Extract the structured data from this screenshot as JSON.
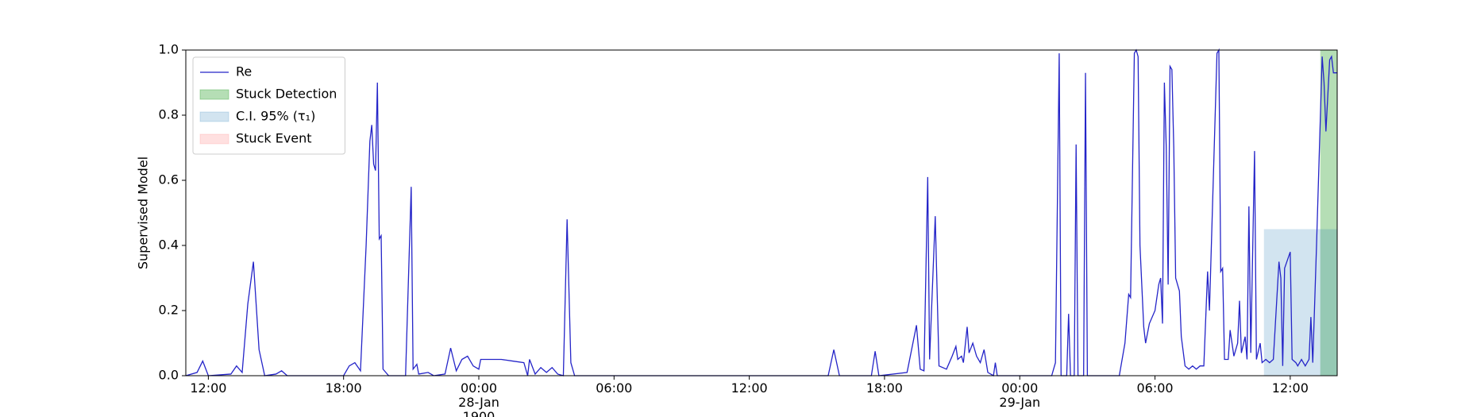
{
  "chart_data": {
    "type": "line",
    "ylabel": "Supervised Model",
    "xlim": [
      "1900-01-27T11:00",
      "1900-01-29T14:05"
    ],
    "ylim": [
      0,
      1
    ],
    "xticks": [
      {
        "value": "1900-01-27T12:00",
        "label": "12:00"
      },
      {
        "value": "1900-01-27T18:00",
        "label": "18:00"
      },
      {
        "value": "1900-01-28T00:00",
        "label": "00:00\n28-Jan\n1900"
      },
      {
        "value": "1900-01-28T06:00",
        "label": "06:00"
      },
      {
        "value": "1900-01-28T12:00",
        "label": "12:00"
      },
      {
        "value": "1900-01-28T18:00",
        "label": "18:00"
      },
      {
        "value": "1900-01-29T00:00",
        "label": "00:00\n29-Jan"
      },
      {
        "value": "1900-01-29T06:00",
        "label": "06:00"
      },
      {
        "value": "1900-01-29T12:00",
        "label": "12:00"
      }
    ],
    "yticks": [
      {
        "value": 0,
        "label": "0.0"
      },
      {
        "value": 0.2,
        "label": "0.2"
      },
      {
        "value": 0.4,
        "label": "0.4"
      },
      {
        "value": 0.6,
        "label": "0.6"
      },
      {
        "value": 0.8,
        "label": "0.8"
      },
      {
        "value": 1,
        "label": "1.0"
      }
    ],
    "legend": "upper left",
    "spans": [
      {
        "name": "Stuck Detection",
        "color": "#2ca02c",
        "alpha": 0.35,
        "start": "1900-01-29T13:20",
        "end": "1900-01-29T14:05",
        "ymax": 1
      },
      {
        "name": "C.I. 95% (τ₁)",
        "color": "#1f77b4",
        "alpha": 0.2,
        "start": "1900-01-29T10:50",
        "end": "1900-01-29T14:05",
        "ymax": 0.45
      },
      {
        "name": "Stuck Event",
        "color": "#ff9999",
        "alpha": 0.3
      }
    ],
    "series": [
      {
        "name": "Re",
        "color": "#2424c8",
        "x": [
          "1900-01-27T11:00",
          "1900-01-27T11:30",
          "1900-01-27T11:45",
          "1900-01-27T12:00",
          "1900-01-27T13:00",
          "1900-01-27T13:15",
          "1900-01-27T13:30",
          "1900-01-27T13:45",
          "1900-01-27T14:00",
          "1900-01-27T14:15",
          "1900-01-27T14:30",
          "1900-01-27T15:00",
          "1900-01-27T15:15",
          "1900-01-27T15:30",
          "1900-01-27T18:00",
          "1900-01-27T18:15",
          "1900-01-27T18:30",
          "1900-01-27T18:45",
          "1900-01-27T19:00",
          "1900-01-27T19:10",
          "1900-01-27T19:15",
          "1900-01-27T19:20",
          "1900-01-27T19:25",
          "1900-01-27T19:30",
          "1900-01-27T19:35",
          "1900-01-27T19:40",
          "1900-01-27T19:45",
          "1900-01-27T20:00",
          "1900-01-27T20:45",
          "1900-01-27T21:00",
          "1900-01-27T21:05",
          "1900-01-27T21:15",
          "1900-01-27T21:20",
          "1900-01-27T21:45",
          "1900-01-27T22:00",
          "1900-01-27T22:30",
          "1900-01-27T22:45",
          "1900-01-27T23:00",
          "1900-01-27T23:15",
          "1900-01-27T23:30",
          "1900-01-27T23:45",
          "1900-01-28T00:00",
          "1900-01-28T00:05",
          "1900-01-28T01:00",
          "1900-01-28T01:30",
          "1900-01-28T02:00",
          "1900-01-28T02:10",
          "1900-01-28T02:15",
          "1900-01-28T02:30",
          "1900-01-28T02:45",
          "1900-01-28T03:00",
          "1900-01-28T03:15",
          "1900-01-28T03:30",
          "1900-01-28T03:45",
          "1900-01-28T03:55",
          "1900-01-28T04:05",
          "1900-01-28T04:15",
          "1900-01-28T15:30",
          "1900-01-28T15:45",
          "1900-01-28T16:00",
          "1900-01-28T17:25",
          "1900-01-28T17:35",
          "1900-01-28T17:45",
          "1900-01-28T19:00",
          "1900-01-28T19:25",
          "1900-01-28T19:35",
          "1900-01-28T19:45",
          "1900-01-28T19:55",
          "1900-01-28T20:00",
          "1900-01-28T20:15",
          "1900-01-28T20:25",
          "1900-01-28T20:45",
          "1900-01-28T21:00",
          "1900-01-28T21:10",
          "1900-01-28T21:15",
          "1900-01-28T21:25",
          "1900-01-28T21:30",
          "1900-01-28T21:40",
          "1900-01-28T21:45",
          "1900-01-28T21:55",
          "1900-01-28T22:05",
          "1900-01-28T22:15",
          "1900-01-28T22:25",
          "1900-01-28T22:35",
          "1900-01-28T22:50",
          "1900-01-28T22:55",
          "1900-01-28T23:00",
          "1900-01-29T01:25",
          "1900-01-29T01:35",
          "1900-01-29T01:45",
          "1900-01-29T01:50",
          "1900-01-29T02:05",
          "1900-01-29T02:10",
          "1900-01-29T02:15",
          "1900-01-29T02:25",
          "1900-01-29T02:30",
          "1900-01-29T02:35",
          "1900-01-29T02:50",
          "1900-01-29T02:55",
          "1900-01-29T03:00",
          "1900-01-29T04:25",
          "1900-01-29T04:40",
          "1900-01-29T04:50",
          "1900-01-29T04:55",
          "1900-01-29T05:05",
          "1900-01-29T05:10",
          "1900-01-29T05:15",
          "1900-01-29T05:20",
          "1900-01-29T05:30",
          "1900-01-29T05:35",
          "1900-01-29T05:45",
          "1900-01-29T06:00",
          "1900-01-29T06:10",
          "1900-01-29T06:15",
          "1900-01-29T06:20",
          "1900-01-29T06:25",
          "1900-01-29T06:30",
          "1900-01-29T06:35",
          "1900-01-29T06:40",
          "1900-01-29T06:45",
          "1900-01-29T06:50",
          "1900-01-29T06:55",
          "1900-01-29T07:05",
          "1900-01-29T07:10",
          "1900-01-29T07:20",
          "1900-01-29T07:30",
          "1900-01-29T07:40",
          "1900-01-29T07:50",
          "1900-01-29T08:00",
          "1900-01-29T08:10",
          "1900-01-29T08:20",
          "1900-01-29T08:25",
          "1900-01-29T08:45",
          "1900-01-29T08:50",
          "1900-01-29T08:55",
          "1900-01-29T09:00",
          "1900-01-29T09:05",
          "1900-01-29T09:15",
          "1900-01-29T09:20",
          "1900-01-29T09:30",
          "1900-01-29T09:40",
          "1900-01-29T09:45",
          "1900-01-29T09:50",
          "1900-01-29T10:00",
          "1900-01-29T10:05",
          "1900-01-29T10:10",
          "1900-01-29T10:15",
          "1900-01-29T10:25",
          "1900-01-29T10:30",
          "1900-01-29T10:40",
          "1900-01-29T10:45",
          "1900-01-29T10:55",
          "1900-01-29T11:05",
          "1900-01-29T11:15",
          "1900-01-29T11:30",
          "1900-01-29T11:35",
          "1900-01-29T11:40",
          "1900-01-29T11:45",
          "1900-01-29T12:00",
          "1900-01-29T12:05",
          "1900-01-29T12:15",
          "1900-01-29T12:20",
          "1900-01-29T12:30",
          "1900-01-29T12:40",
          "1900-01-29T12:50",
          "1900-01-29T12:55",
          "1900-01-29T13:00",
          "1900-01-29T13:10",
          "1900-01-29T13:25",
          "1900-01-29T13:30",
          "1900-01-29T13:35",
          "1900-01-29T13:45",
          "1900-01-29T13:50",
          "1900-01-29T13:55",
          "1900-01-29T14:05"
        ],
        "values": [
          0,
          0.01,
          0.045,
          0,
          0.005,
          0.03,
          0.01,
          0.22,
          0.35,
          0.08,
          0,
          0.005,
          0.015,
          0,
          0,
          0.03,
          0.04,
          0.015,
          0.4,
          0.72,
          0.77,
          0.65,
          0.63,
          0.9,
          0.42,
          0.43,
          0.02,
          0,
          0,
          0.58,
          0.02,
          0.035,
          0.005,
          0.01,
          0,
          0.005,
          0.085,
          0.015,
          0.05,
          0.06,
          0.03,
          0.02,
          0.05,
          0.05,
          0.045,
          0.04,
          0,
          0.05,
          0.005,
          0.025,
          0.01,
          0.025,
          0.005,
          0,
          0.48,
          0.04,
          0,
          0,
          0.08,
          0,
          0,
          0.075,
          0,
          0.01,
          0.155,
          0.02,
          0.015,
          0.61,
          0.05,
          0.49,
          0.03,
          0.02,
          0.06,
          0.09,
          0.05,
          0.06,
          0.04,
          0.15,
          0.07,
          0.1,
          0.06,
          0.04,
          0.08,
          0.01,
          0,
          0.04,
          0,
          0,
          0.04,
          0.99,
          0,
          0,
          0.19,
          0,
          0,
          0.71,
          0,
          0,
          0.93,
          0,
          0,
          0.1,
          0.25,
          0.24,
          0.99,
          1.0,
          0.98,
          0.4,
          0.15,
          0.1,
          0.16,
          0.2,
          0.28,
          0.3,
          0.16,
          0.9,
          0.7,
          0.28,
          0.95,
          0.94,
          0.7,
          0.3,
          0.26,
          0.12,
          0.03,
          0.02,
          0.03,
          0.02,
          0.03,
          0.03,
          0.32,
          0.2,
          0.99,
          1.0,
          0.32,
          0.33,
          0.05,
          0.05,
          0.14,
          0.06,
          0.1,
          0.23,
          0.07,
          0.12,
          0.05,
          0.52,
          0.07,
          0.69,
          0.05,
          0.1,
          0.04,
          0.05,
          0.04,
          0.05,
          0.35,
          0.3,
          0.03,
          0.33,
          0.38,
          0.05,
          0.04,
          0.03,
          0.05,
          0.03,
          0.05,
          0.18,
          0.04,
          0.4,
          0.98,
          0.9,
          0.75,
          0.97,
          0.98,
          0.93,
          0.93
        ]
      }
    ]
  }
}
